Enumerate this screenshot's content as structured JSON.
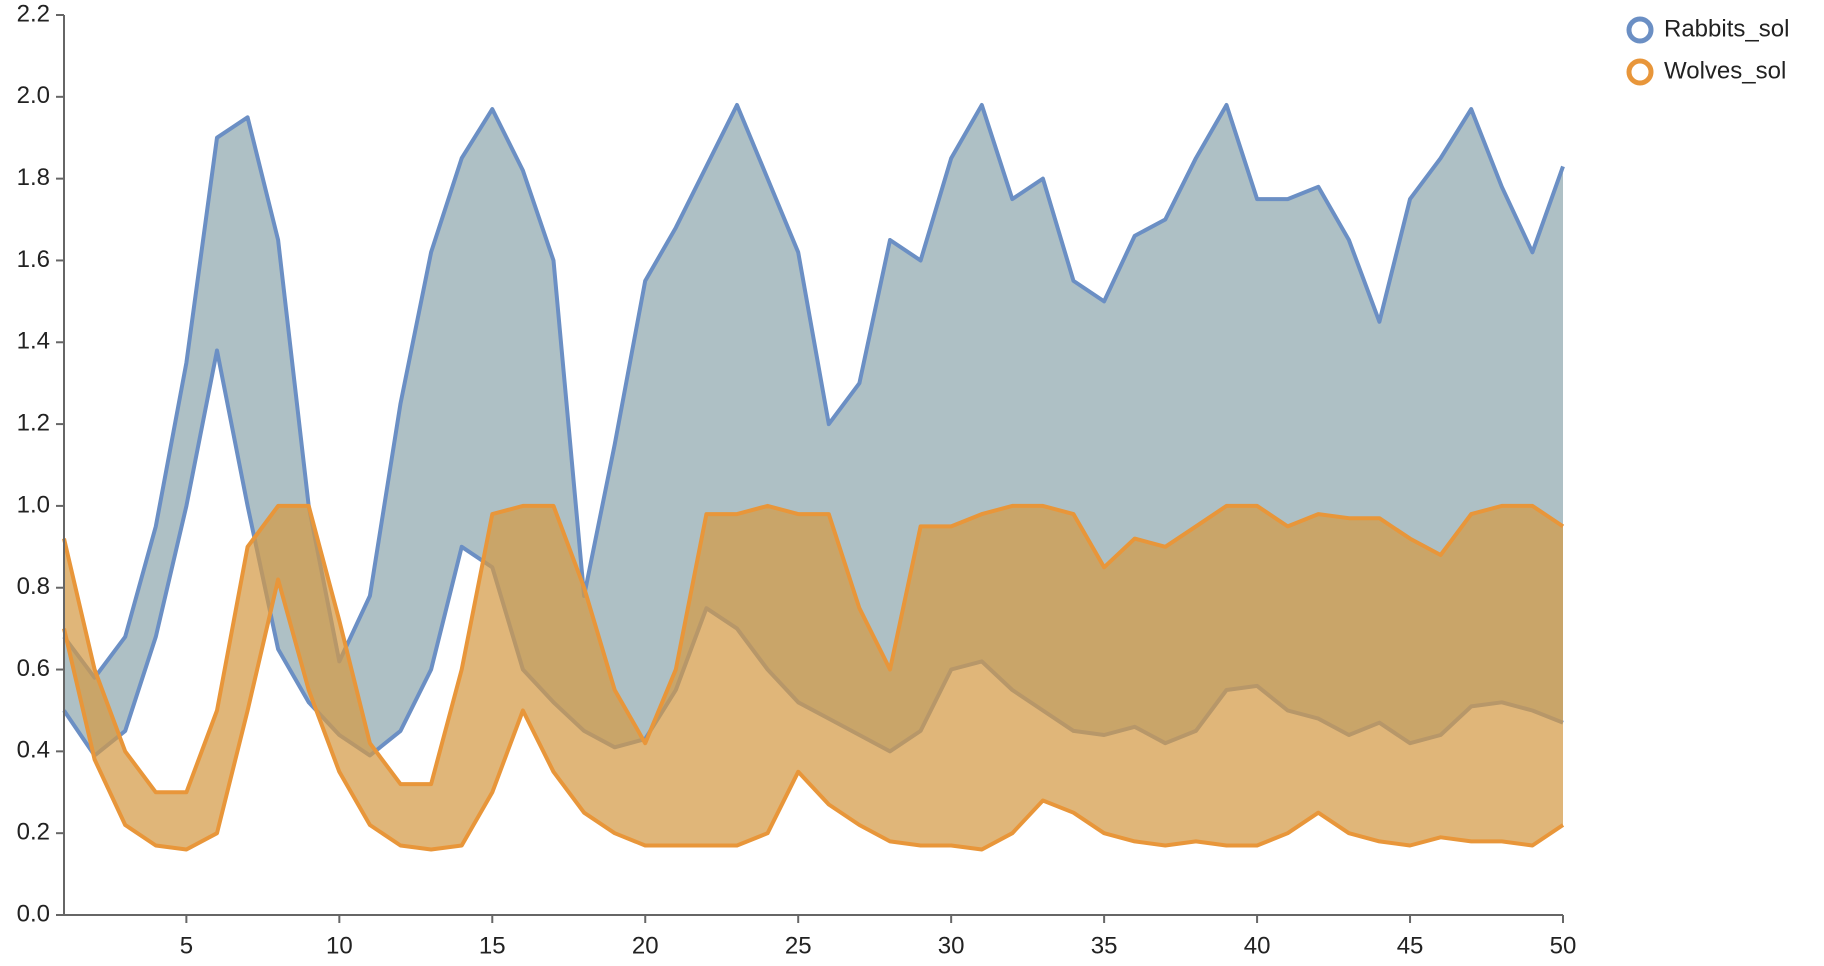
{
  "chart_data": {
    "type": "band",
    "x": [
      1,
      2,
      3,
      4,
      5,
      6,
      7,
      8,
      9,
      10,
      11,
      12,
      13,
      14,
      15,
      16,
      17,
      18,
      19,
      20,
      21,
      22,
      23,
      24,
      25,
      26,
      27,
      28,
      29,
      30,
      31,
      32,
      33,
      34,
      35,
      36,
      37,
      38,
      39,
      40,
      41,
      42,
      43,
      44,
      45,
      46,
      47,
      48,
      49,
      50
    ],
    "series": [
      {
        "name": "Rabbits_sol",
        "color": "#6b8fc4",
        "fill": "#8fa8ae",
        "upper": [
          0.68,
          0.58,
          0.68,
          0.95,
          1.35,
          1.9,
          1.95,
          1.65,
          1.0,
          0.62,
          0.78,
          1.25,
          1.62,
          1.85,
          1.97,
          1.82,
          1.6,
          0.78,
          1.15,
          1.55,
          1.68,
          1.83,
          1.98,
          1.8,
          1.62,
          1.2,
          1.3,
          1.65,
          1.6,
          1.85,
          1.98,
          1.75,
          1.8,
          1.55,
          1.5,
          1.66,
          1.7,
          1.85,
          1.98,
          1.75,
          1.75,
          1.78,
          1.65,
          1.45,
          1.75,
          1.85,
          1.97,
          1.78,
          1.62,
          1.83
        ],
        "lower": [
          0.5,
          0.39,
          0.45,
          0.68,
          1.0,
          1.38,
          1.0,
          0.65,
          0.52,
          0.44,
          0.39,
          0.45,
          0.6,
          0.9,
          0.85,
          0.6,
          0.52,
          0.45,
          0.41,
          0.43,
          0.55,
          0.75,
          0.7,
          0.6,
          0.52,
          0.48,
          0.44,
          0.4,
          0.45,
          0.6,
          0.62,
          0.55,
          0.5,
          0.45,
          0.44,
          0.46,
          0.42,
          0.45,
          0.55,
          0.56,
          0.5,
          0.48,
          0.44,
          0.47,
          0.42,
          0.44,
          0.51,
          0.52,
          0.5,
          0.47
        ]
      },
      {
        "name": "Wolves_sol",
        "color": "#e8963a",
        "fill": "#d49a45",
        "upper": [
          0.92,
          0.6,
          0.4,
          0.3,
          0.3,
          0.5,
          0.9,
          1.0,
          1.0,
          0.72,
          0.42,
          0.32,
          0.32,
          0.6,
          0.98,
          1.0,
          1.0,
          0.8,
          0.55,
          0.42,
          0.6,
          0.98,
          0.98,
          1.0,
          0.98,
          0.98,
          0.75,
          0.6,
          0.95,
          0.95,
          0.98,
          1.0,
          1.0,
          0.98,
          0.85,
          0.92,
          0.9,
          0.95,
          1.0,
          1.0,
          0.95,
          0.98,
          0.97,
          0.97,
          0.92,
          0.88,
          0.98,
          1.0,
          1.0,
          0.95
        ],
        "lower": [
          0.7,
          0.38,
          0.22,
          0.17,
          0.16,
          0.2,
          0.5,
          0.82,
          0.55,
          0.35,
          0.22,
          0.17,
          0.16,
          0.17,
          0.3,
          0.5,
          0.35,
          0.25,
          0.2,
          0.17,
          0.17,
          0.17,
          0.17,
          0.2,
          0.35,
          0.27,
          0.22,
          0.18,
          0.17,
          0.17,
          0.16,
          0.2,
          0.28,
          0.25,
          0.2,
          0.18,
          0.17,
          0.18,
          0.17,
          0.17,
          0.2,
          0.25,
          0.2,
          0.18,
          0.17,
          0.19,
          0.18,
          0.18,
          0.17,
          0.22
        ]
      }
    ],
    "xlim": [
      1,
      50
    ],
    "xticks": [
      5,
      10,
      15,
      20,
      25,
      30,
      35,
      40,
      45,
      50
    ],
    "ylim": [
      0,
      2.2
    ],
    "yticks": [
      {
        "value": 0,
        "label": "0.0"
      },
      0.2,
      0.4,
      0.6,
      0.8,
      {
        "value": 1,
        "label": "1.0"
      },
      1.2,
      1.4,
      1.6,
      1.8,
      {
        "value": 2,
        "label": "2.0"
      },
      2.2
    ],
    "grid": false,
    "legend": "top-right"
  }
}
